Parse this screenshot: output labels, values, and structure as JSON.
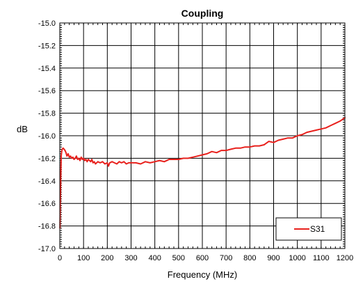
{
  "chart_data": {
    "type": "line",
    "title": "Coupling",
    "xlabel": "Frequency (MHz)",
    "ylabel": "dB",
    "xlim": [
      0,
      1200
    ],
    "ylim": [
      -17.0,
      -15.0
    ],
    "grid": true,
    "legend": "bottom-right",
    "x_ticks": [
      "0",
      "100",
      "200",
      "300",
      "400",
      "500",
      "600",
      "700",
      "800",
      "900",
      "1000",
      "1100",
      "1200"
    ],
    "y_ticks": [
      "-15.0",
      "-15.2",
      "-15.4",
      "-15.6",
      "-15.8",
      "-16.0",
      "-16.2",
      "-16.4",
      "-16.6",
      "-16.8",
      "-17.0"
    ],
    "series": [
      {
        "name": "S31",
        "color": "#e8201c",
        "x": [
          1,
          2,
          4,
          6,
          8,
          10,
          14,
          18,
          22,
          26,
          30,
          35,
          40,
          45,
          50,
          55,
          60,
          65,
          70,
          75,
          80,
          85,
          90,
          95,
          100,
          105,
          110,
          115,
          120,
          125,
          130,
          135,
          140,
          145,
          150,
          160,
          170,
          180,
          190,
          200,
          205,
          210,
          220,
          230,
          240,
          250,
          260,
          270,
          280,
          290,
          300,
          320,
          340,
          360,
          380,
          400,
          420,
          440,
          460,
          480,
          500,
          520,
          540,
          560,
          580,
          600,
          620,
          640,
          660,
          680,
          700,
          720,
          740,
          760,
          780,
          800,
          820,
          840,
          860,
          880,
          900,
          920,
          940,
          960,
          980,
          1000,
          1020,
          1040,
          1060,
          1080,
          1100,
          1120,
          1140,
          1160,
          1180,
          1200
        ],
        "y": [
          -16.82,
          -16.6,
          -16.35,
          -16.18,
          -16.14,
          -16.12,
          -16.11,
          -16.12,
          -16.13,
          -16.15,
          -16.18,
          -16.16,
          -16.19,
          -16.18,
          -16.2,
          -16.19,
          -16.21,
          -16.2,
          -16.18,
          -16.21,
          -16.2,
          -16.22,
          -16.19,
          -16.21,
          -16.2,
          -16.22,
          -16.21,
          -16.23,
          -16.21,
          -16.22,
          -16.23,
          -16.21,
          -16.24,
          -16.23,
          -16.25,
          -16.23,
          -16.24,
          -16.23,
          -16.25,
          -16.24,
          -16.27,
          -16.24,
          -16.23,
          -16.24,
          -16.25,
          -16.23,
          -16.24,
          -16.23,
          -16.25,
          -16.24,
          -16.24,
          -16.24,
          -16.25,
          -16.23,
          -16.24,
          -16.23,
          -16.22,
          -16.23,
          -16.21,
          -16.21,
          -16.21,
          -16.2,
          -16.2,
          -16.19,
          -16.18,
          -16.17,
          -16.16,
          -16.14,
          -16.15,
          -16.13,
          -16.13,
          -16.12,
          -16.11,
          -16.11,
          -16.1,
          -16.1,
          -16.09,
          -16.09,
          -16.08,
          -16.05,
          -16.06,
          -16.04,
          -16.03,
          -16.02,
          -16.02,
          -16.0,
          -15.99,
          -15.97,
          -15.96,
          -15.95,
          -15.94,
          -15.93,
          -15.91,
          -15.89,
          -15.87,
          -15.84
        ]
      }
    ]
  }
}
